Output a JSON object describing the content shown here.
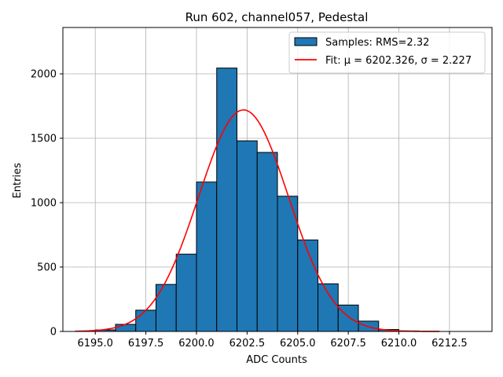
{
  "chart_data": {
    "type": "bar",
    "title": "Run 602, channel057, Pedestal",
    "xlabel": "ADC Counts",
    "ylabel": "Entries",
    "xlim": [
      6193.4,
      6214.6
    ],
    "ylim": [
      0,
      2360
    ],
    "grid": true,
    "legend_position": "top-right",
    "xticks": [
      6195.0,
      6197.5,
      6200.0,
      6202.5,
      6205.0,
      6207.5,
      6210.0,
      6212.5
    ],
    "xtick_labels": [
      "6195.0",
      "6197.5",
      "6200.0",
      "6202.5",
      "6205.0",
      "6207.5",
      "6210.0",
      "6212.5"
    ],
    "yticks": [
      0,
      500,
      1000,
      1500,
      2000
    ],
    "ytick_labels": [
      "0",
      "500",
      "1000",
      "1500",
      "2000"
    ],
    "histogram": {
      "name": "Samples: RMS=2.32",
      "bin_edges": [
        6195.0,
        6196.0,
        6197.0,
        6198.0,
        6199.0,
        6200.0,
        6201.0,
        6202.0,
        6203.0,
        6204.0,
        6205.0,
        6206.0,
        6207.0,
        6208.0,
        6209.0,
        6210.0,
        6211.0,
        6212.0,
        6213.0,
        6214.0
      ],
      "bin_starts": [
        6195,
        6196,
        6197,
        6198,
        6199,
        6200,
        6201,
        6202,
        6203,
        6204,
        6205,
        6206,
        6207,
        6208,
        6209,
        6210,
        6211,
        6212,
        6213
      ],
      "values": [
        12,
        55,
        165,
        365,
        600,
        1160,
        2045,
        1480,
        1390,
        1050,
        710,
        370,
        205,
        80,
        15,
        4,
        1,
        0,
        0
      ],
      "color": "#1f77b4",
      "edgecolor": "#000000"
    },
    "fit": {
      "name": "Fit: μ = 6202.326, σ = 2.227",
      "mu": 6202.326,
      "sigma": 2.227,
      "amplitude": 1720,
      "x_range": [
        6194.0,
        6212.0
      ],
      "color": "#ff0000"
    }
  }
}
